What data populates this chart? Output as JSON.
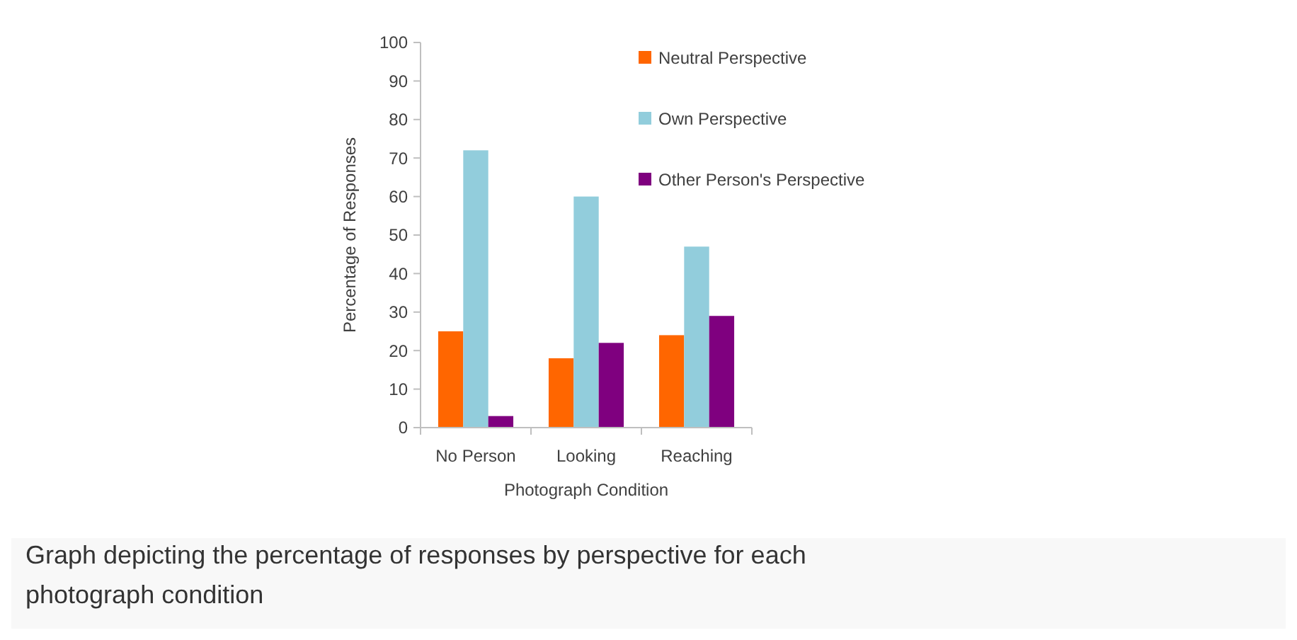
{
  "chart_data": {
    "type": "bar",
    "xlabel": "Photograph Condition",
    "ylabel": "Percentage of Responses",
    "categories": [
      "No Person",
      "Looking",
      "Reaching"
    ],
    "series": [
      {
        "name": "Neutral Perspective",
        "color": "#ff6600",
        "values": [
          25,
          18,
          24
        ]
      },
      {
        "name": "Own Perspective",
        "color": "#92cddc",
        "values": [
          72,
          60,
          47
        ]
      },
      {
        "name": "Other Person's Perspective",
        "color": "#7f007f",
        "values": [
          3,
          22,
          29
        ]
      }
    ],
    "ylim": [
      0,
      100
    ],
    "yticks": [
      0,
      10,
      20,
      30,
      40,
      50,
      60,
      70,
      80,
      90,
      100
    ],
    "grid": false,
    "legend": "right",
    "annotations": [
      "Graph depicting the percentage of responses by perspective for each photograph condition"
    ]
  }
}
